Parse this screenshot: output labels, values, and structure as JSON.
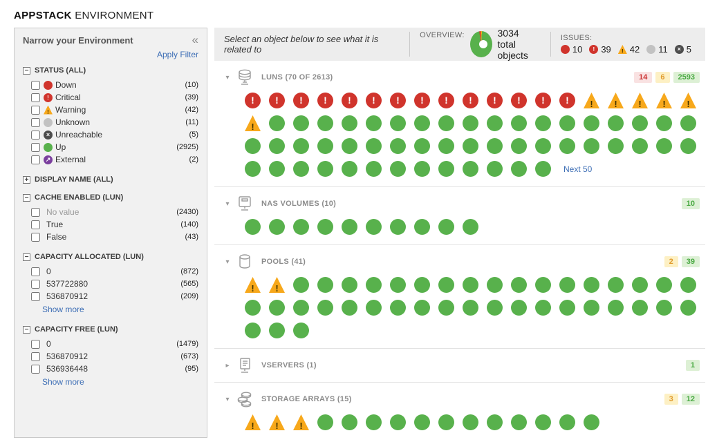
{
  "page_title": {
    "brand": "APPSTACK",
    "section": "ENVIRONMENT"
  },
  "colors": {
    "up": "#58b14c",
    "down": "#d0342c",
    "critical": "#d0342c",
    "warning": "#f7a81b",
    "unknown": "#c2c2c2",
    "unreachable": "#4d4d4d",
    "external": "#7b3f9e",
    "link": "#3d6eb5"
  },
  "sidebar": {
    "title": "Narrow your Environment",
    "collapse_icon": "chevron-double-left",
    "apply_filter_label": "Apply Filter",
    "show_more_label": "Show more",
    "groups": [
      {
        "title": "STATUS (ALL)",
        "expanded": true,
        "show_more": false,
        "items": [
          {
            "label": "Down",
            "icon": "down",
            "count": "(10)"
          },
          {
            "label": "Critical",
            "icon": "critical",
            "count": "(39)"
          },
          {
            "label": "Warning",
            "icon": "warning",
            "count": "(42)"
          },
          {
            "label": "Unknown",
            "icon": "unknown",
            "count": "(11)"
          },
          {
            "label": "Unreachable",
            "icon": "unreachable",
            "count": "(5)"
          },
          {
            "label": "Up",
            "icon": "up",
            "count": "(2925)"
          },
          {
            "label": "External",
            "icon": "external",
            "count": "(2)"
          }
        ]
      },
      {
        "title": "DISPLAY NAME (ALL)",
        "expanded": false,
        "show_more": false,
        "items": []
      },
      {
        "title": "CACHE ENABLED (LUN)",
        "expanded": true,
        "show_more": false,
        "items": [
          {
            "label": "No value",
            "muted": true,
            "count": "(2430)"
          },
          {
            "label": "True",
            "count": "(140)"
          },
          {
            "label": "False",
            "count": "(43)"
          }
        ]
      },
      {
        "title": "CAPACITY ALLOCATED (LUN)",
        "expanded": true,
        "show_more": true,
        "items": [
          {
            "label": "0",
            "count": "(872)"
          },
          {
            "label": "537722880",
            "count": "(565)"
          },
          {
            "label": "536870912",
            "count": "(209)"
          }
        ]
      },
      {
        "title": "CAPACITY FREE (LUN)",
        "expanded": true,
        "show_more": true,
        "items": [
          {
            "label": "0",
            "count": "(1479)"
          },
          {
            "label": "536870912",
            "count": "(673)"
          },
          {
            "label": "536936448",
            "count": "(95)"
          }
        ]
      }
    ]
  },
  "topbar": {
    "hint": "Select an object below to see what it is related to",
    "overview_label": "OVERVIEW:",
    "total_value": "3034",
    "total_label": "total objects",
    "issues_label": "ISSUES:",
    "issues": [
      {
        "icon": "down",
        "count": "10"
      },
      {
        "icon": "critical",
        "count": "39"
      },
      {
        "icon": "warning",
        "count": "42"
      },
      {
        "icon": "unknown",
        "count": "11"
      },
      {
        "icon": "unreachable",
        "count": "5"
      }
    ]
  },
  "sections": [
    {
      "key": "luns",
      "title": "LUNS (70 OF 2613)",
      "icon": "luns-icon",
      "expanded": true,
      "badges": [
        {
          "type": "critical",
          "value": "14"
        },
        {
          "type": "warning",
          "value": "6"
        },
        {
          "type": "up",
          "value": "2593"
        }
      ],
      "statuses": [
        {
          "status": "critical",
          "count": 14
        },
        {
          "status": "warning",
          "count": 6
        },
        {
          "status": "up",
          "count": 50
        }
      ],
      "footer_link": "Next 50"
    },
    {
      "key": "nas_volumes",
      "title": "NAS VOLUMES (10)",
      "icon": "nas-volumes-icon",
      "expanded": true,
      "badges": [
        {
          "type": "up",
          "value": "10"
        }
      ],
      "statuses": [
        {
          "status": "up",
          "count": 10
        }
      ],
      "footer_link": ""
    },
    {
      "key": "pools",
      "title": "POOLS (41)",
      "icon": "pools-icon",
      "expanded": true,
      "badges": [
        {
          "type": "warning",
          "value": "2"
        },
        {
          "type": "up",
          "value": "39"
        }
      ],
      "statuses": [
        {
          "status": "warning",
          "count": 2
        },
        {
          "status": "up",
          "count": 39
        }
      ],
      "footer_link": ""
    },
    {
      "key": "vservers",
      "title": "VSERVERS (1)",
      "icon": "vservers-icon",
      "expanded": false,
      "badges": [
        {
          "type": "up",
          "value": "1"
        }
      ],
      "statuses": [],
      "footer_link": ""
    },
    {
      "key": "storage_arrays",
      "title": "STORAGE ARRAYS (15)",
      "icon": "storage-arrays-icon",
      "expanded": true,
      "badges": [
        {
          "type": "warning",
          "value": "3"
        },
        {
          "type": "up",
          "value": "12"
        }
      ],
      "statuses": [
        {
          "status": "warning",
          "count": 3
        },
        {
          "status": "up",
          "count": 12
        }
      ],
      "footer_link": ""
    }
  ]
}
